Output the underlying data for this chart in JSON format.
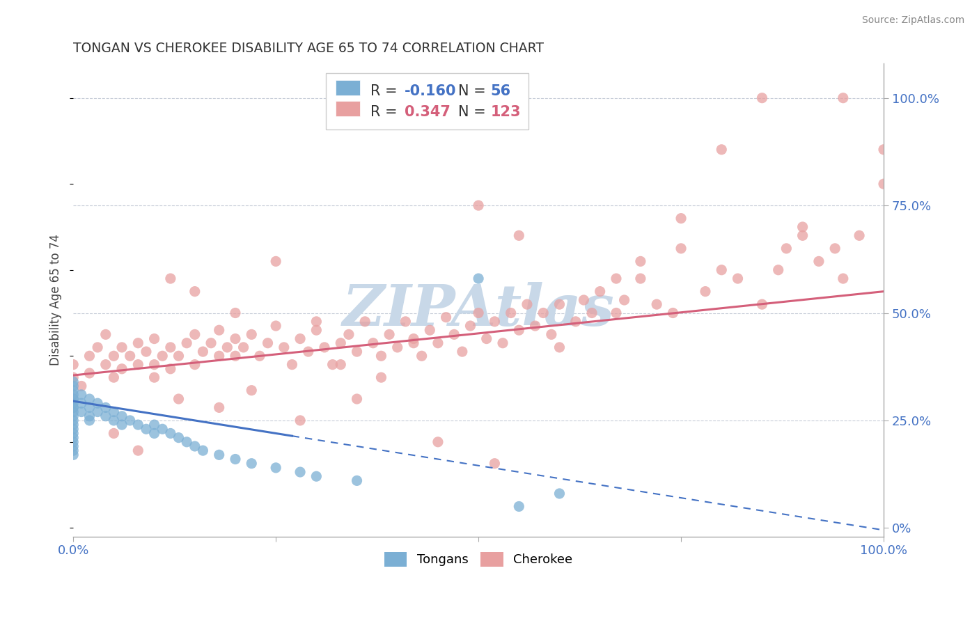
{
  "title": "TONGAN VS CHEROKEE DISABILITY AGE 65 TO 74 CORRELATION CHART",
  "source": "Source: ZipAtlas.com",
  "ylabel": "Disability Age 65 to 74",
  "xlim": [
    0.0,
    1.0
  ],
  "ylim": [
    -0.02,
    1.08
  ],
  "tongans_color": "#7bafd4",
  "cherokee_color": "#e8a0a0",
  "tongans_line_color": "#4472c4",
  "cherokee_line_color": "#d45f7a",
  "tongans_R": -0.16,
  "tongans_N": 56,
  "cherokee_R": 0.347,
  "cherokee_N": 123,
  "background_color": "#ffffff",
  "watermark": "ZIPAtlas",
  "watermark_color": "#c8d8e8",
  "figsize": [
    14.06,
    8.92
  ],
  "dpi": 100,
  "tongans_x": [
    0.0,
    0.0,
    0.0,
    0.0,
    0.0,
    0.0,
    0.0,
    0.0,
    0.0,
    0.0,
    0.0,
    0.0,
    0.0,
    0.0,
    0.0,
    0.0,
    0.0,
    0.0,
    0.0,
    0.0,
    0.01,
    0.01,
    0.01,
    0.02,
    0.02,
    0.02,
    0.02,
    0.03,
    0.03,
    0.04,
    0.04,
    0.05,
    0.05,
    0.06,
    0.06,
    0.07,
    0.08,
    0.09,
    0.1,
    0.1,
    0.11,
    0.12,
    0.13,
    0.14,
    0.15,
    0.16,
    0.18,
    0.2,
    0.22,
    0.25,
    0.28,
    0.3,
    0.35,
    0.5,
    0.55,
    0.6
  ],
  "tongans_y": [
    0.3,
    0.31,
    0.32,
    0.28,
    0.29,
    0.27,
    0.33,
    0.34,
    0.25,
    0.26,
    0.24,
    0.23,
    0.22,
    0.21,
    0.2,
    0.19,
    0.18,
    0.17,
    0.28,
    0.3,
    0.29,
    0.31,
    0.27,
    0.28,
    0.3,
    0.25,
    0.26,
    0.27,
    0.29,
    0.26,
    0.28,
    0.27,
    0.25,
    0.26,
    0.24,
    0.25,
    0.24,
    0.23,
    0.22,
    0.24,
    0.23,
    0.22,
    0.21,
    0.2,
    0.19,
    0.18,
    0.17,
    0.16,
    0.15,
    0.14,
    0.13,
    0.12,
    0.11,
    0.58,
    0.05,
    0.08
  ],
  "cherokee_x": [
    0.0,
    0.0,
    0.01,
    0.02,
    0.02,
    0.03,
    0.04,
    0.04,
    0.05,
    0.05,
    0.06,
    0.06,
    0.07,
    0.08,
    0.08,
    0.09,
    0.1,
    0.1,
    0.11,
    0.12,
    0.12,
    0.13,
    0.14,
    0.15,
    0.15,
    0.16,
    0.17,
    0.18,
    0.18,
    0.19,
    0.2,
    0.2,
    0.21,
    0.22,
    0.23,
    0.24,
    0.25,
    0.26,
    0.27,
    0.28,
    0.29,
    0.3,
    0.31,
    0.32,
    0.33,
    0.34,
    0.35,
    0.36,
    0.37,
    0.38,
    0.39,
    0.4,
    0.41,
    0.42,
    0.43,
    0.44,
    0.45,
    0.46,
    0.47,
    0.48,
    0.49,
    0.5,
    0.51,
    0.52,
    0.53,
    0.54,
    0.55,
    0.56,
    0.57,
    0.58,
    0.59,
    0.6,
    0.62,
    0.63,
    0.64,
    0.65,
    0.67,
    0.68,
    0.7,
    0.72,
    0.74,
    0.75,
    0.78,
    0.8,
    0.82,
    0.85,
    0.87,
    0.88,
    0.9,
    0.92,
    0.94,
    0.95,
    0.97,
    1.0,
    0.1,
    0.13,
    0.18,
    0.22,
    0.28,
    0.33,
    0.15,
    0.2,
    0.25,
    0.3,
    0.38,
    0.42,
    0.5,
    0.55,
    0.6,
    0.67,
    0.7,
    0.75,
    0.8,
    0.85,
    0.9,
    0.95,
    1.0,
    0.05,
    0.08,
    0.12,
    0.35,
    0.45,
    0.52
  ],
  "cherokee_y": [
    0.35,
    0.38,
    0.33,
    0.4,
    0.36,
    0.42,
    0.38,
    0.45,
    0.4,
    0.35,
    0.42,
    0.37,
    0.4,
    0.43,
    0.38,
    0.41,
    0.38,
    0.44,
    0.4,
    0.42,
    0.37,
    0.4,
    0.43,
    0.38,
    0.45,
    0.41,
    0.43,
    0.4,
    0.46,
    0.42,
    0.4,
    0.44,
    0.42,
    0.45,
    0.4,
    0.43,
    0.47,
    0.42,
    0.38,
    0.44,
    0.41,
    0.46,
    0.42,
    0.38,
    0.43,
    0.45,
    0.41,
    0.48,
    0.43,
    0.4,
    0.45,
    0.42,
    0.48,
    0.44,
    0.4,
    0.46,
    0.43,
    0.49,
    0.45,
    0.41,
    0.47,
    0.5,
    0.44,
    0.48,
    0.43,
    0.5,
    0.46,
    0.52,
    0.47,
    0.5,
    0.45,
    0.52,
    0.48,
    0.53,
    0.5,
    0.55,
    0.5,
    0.53,
    0.58,
    0.52,
    0.5,
    0.65,
    0.55,
    0.6,
    0.58,
    0.52,
    0.6,
    0.65,
    0.68,
    0.62,
    0.65,
    1.0,
    0.68,
    0.88,
    0.35,
    0.3,
    0.28,
    0.32,
    0.25,
    0.38,
    0.55,
    0.5,
    0.62,
    0.48,
    0.35,
    0.43,
    0.75,
    0.68,
    0.42,
    0.58,
    0.62,
    0.72,
    0.88,
    1.0,
    0.7,
    0.58,
    0.8,
    0.22,
    0.18,
    0.58,
    0.3,
    0.2,
    0.15
  ]
}
